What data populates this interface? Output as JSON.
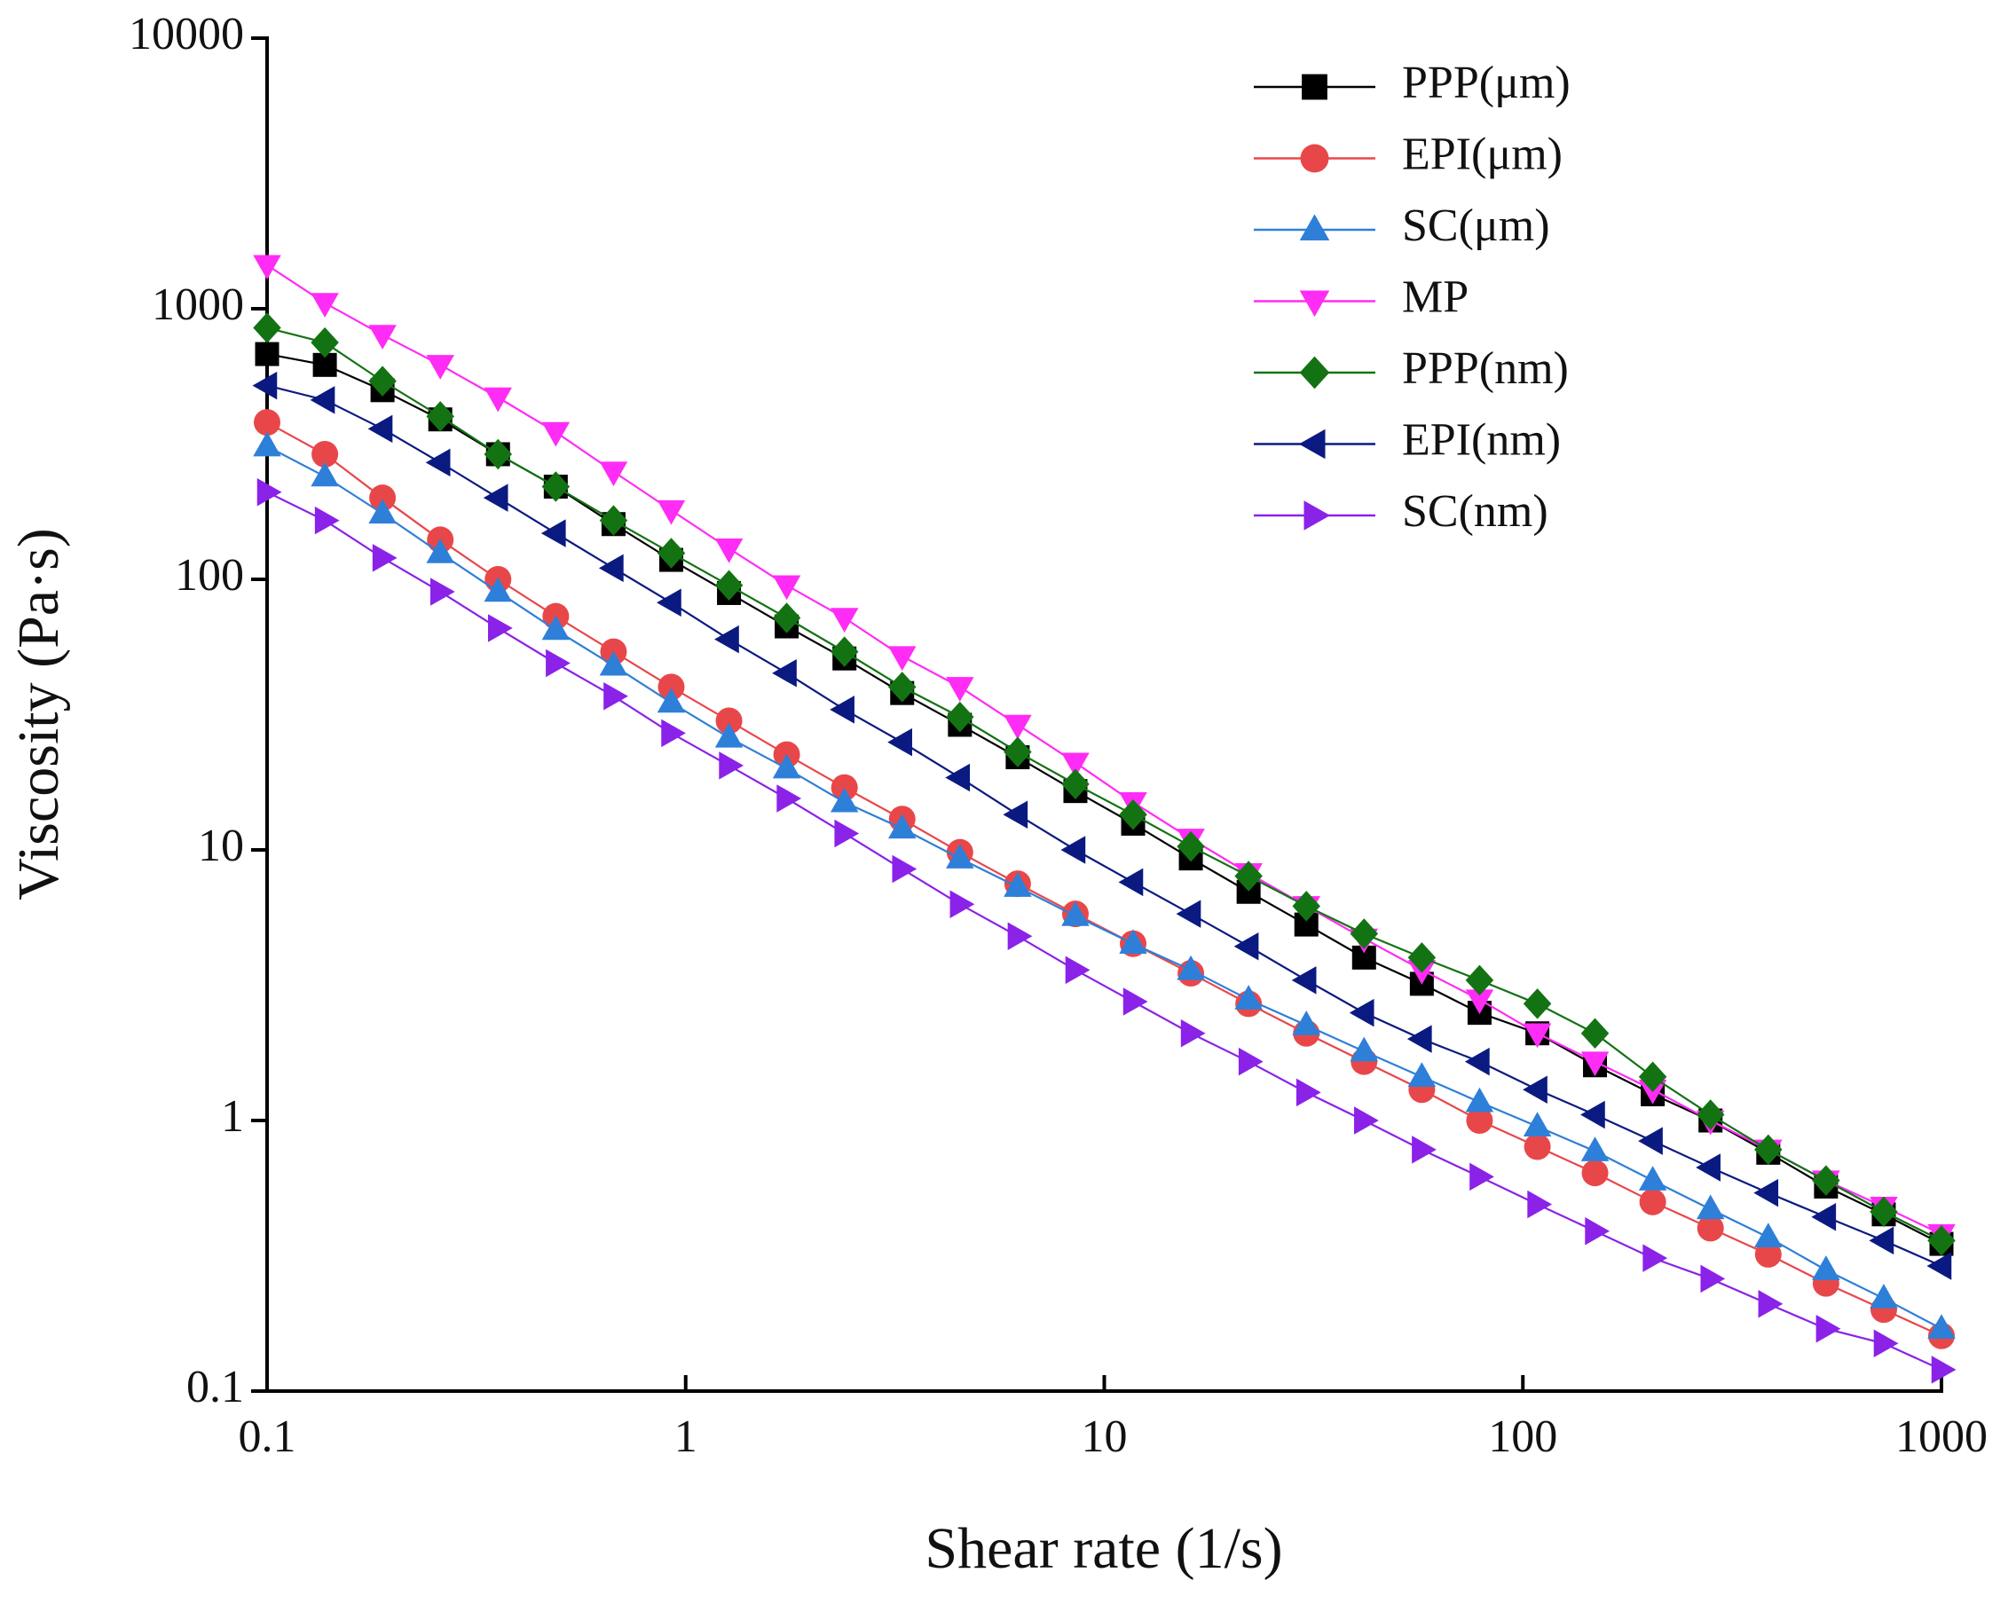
{
  "chart_data": {
    "type": "line",
    "xlabel": "Shear rate (1/s)",
    "ylabel": "Viscosity (Pa·s)",
    "xscale": "log",
    "yscale": "log",
    "xlim": [
      0.1,
      1000
    ],
    "ylim": [
      0.1,
      10000
    ],
    "xticks": [
      0.1,
      1,
      10,
      100,
      1000
    ],
    "yticks": [
      0.1,
      1,
      10,
      100,
      1000,
      10000
    ],
    "legend": "upper right",
    "x": [
      0.1,
      0.1374,
      0.1887,
      0.2593,
      0.3562,
      0.4894,
      0.6724,
      0.9237,
      1.269,
      1.743,
      2.395,
      3.29,
      4.52,
      6.21,
      8.532,
      11.72,
      16.1,
      22.12,
      30.39,
      41.75,
      57.36,
      78.8,
      108.3,
      148.7,
      204.3,
      280.7,
      385.7,
      529.9,
      728,
      1000
    ],
    "series": [
      {
        "name": "PPP(μm)",
        "color": "#000000",
        "marker": "square",
        "values": [
          680,
          620,
          500,
          390,
          290,
          220,
          160,
          118,
          89,
          67,
          51,
          38,
          29,
          22,
          16.5,
          12.5,
          9.3,
          7.0,
          5.3,
          4.0,
          3.2,
          2.5,
          2.1,
          1.6,
          1.25,
          1.0,
          0.76,
          0.57,
          0.45,
          0.35
        ]
      },
      {
        "name": "EPI(μm)",
        "color": "#e8474a",
        "marker": "circle",
        "values": [
          380,
          290,
          200,
          140,
          100,
          73,
          54,
          40,
          30,
          22.5,
          17,
          13,
          9.8,
          7.5,
          5.8,
          4.5,
          3.5,
          2.7,
          2.1,
          1.65,
          1.3,
          1.0,
          0.8,
          0.64,
          0.5,
          0.4,
          0.32,
          0.25,
          0.2,
          0.16
        ]
      },
      {
        "name": "SC(μm)",
        "color": "#2e7fd8",
        "marker": "triangle-up",
        "values": [
          310,
          240,
          175,
          125,
          90,
          65,
          48,
          35,
          26,
          20,
          15,
          12,
          9.3,
          7.3,
          5.7,
          4.5,
          3.6,
          2.8,
          2.25,
          1.8,
          1.45,
          1.17,
          0.95,
          0.77,
          0.6,
          0.47,
          0.37,
          0.28,
          0.22,
          0.17
        ]
      },
      {
        "name": "MP",
        "color": "#ff2cf5",
        "marker": "triangle-down",
        "values": [
          1450,
          1050,
          800,
          620,
          470,
          350,
          250,
          180,
          130,
          95,
          72,
          52,
          40,
          29,
          21,
          15,
          11,
          8.2,
          6.2,
          4.7,
          3.6,
          2.8,
          2.1,
          1.65,
          1.3,
          1.0,
          0.78,
          0.6,
          0.48,
          0.38
        ]
      },
      {
        "name": "PPP(nm)",
        "color": "#137313",
        "marker": "diamond",
        "values": [
          850,
          750,
          540,
          400,
          290,
          220,
          165,
          125,
          95,
          72,
          54,
          40,
          31,
          23,
          17.5,
          13.5,
          10.3,
          8.0,
          6.2,
          4.9,
          4.0,
          3.3,
          2.7,
          2.1,
          1.45,
          1.05,
          0.78,
          0.6,
          0.46,
          0.36
        ]
      },
      {
        "name": "EPI(nm)",
        "color": "#0b1a80",
        "marker": "triangle-left",
        "values": [
          520,
          460,
          360,
          270,
          200,
          148,
          110,
          82,
          60,
          45,
          33,
          25,
          18.5,
          13.5,
          10,
          7.6,
          5.8,
          4.4,
          3.3,
          2.5,
          2.0,
          1.65,
          1.3,
          1.05,
          0.84,
          0.67,
          0.54,
          0.44,
          0.36,
          0.29
        ]
      },
      {
        "name": "SC(nm)",
        "color": "#8b22e8",
        "marker": "triangle-right",
        "values": [
          210,
          165,
          120,
          90,
          66,
          49,
          37,
          27,
          20.5,
          15.5,
          11.5,
          8.5,
          6.3,
          4.8,
          3.6,
          2.75,
          2.1,
          1.65,
          1.27,
          1.0,
          0.78,
          0.62,
          0.49,
          0.39,
          0.31,
          0.26,
          0.21,
          0.17,
          0.15,
          0.12
        ]
      }
    ]
  }
}
